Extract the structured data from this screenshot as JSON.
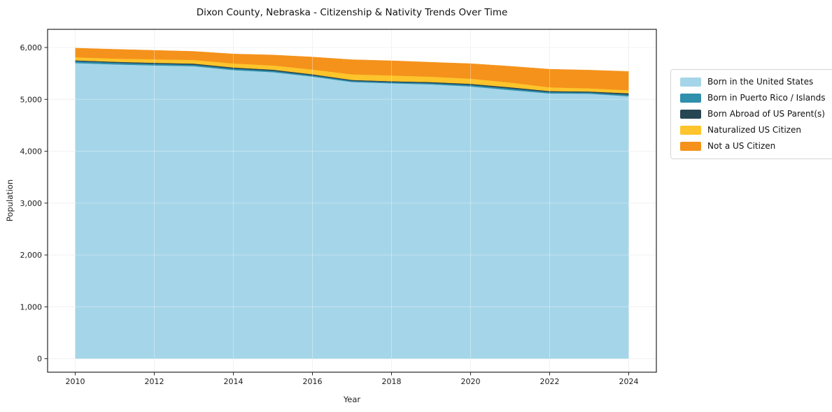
{
  "chart_data": {
    "type": "area",
    "stacked": true,
    "title": "Dixon County, Nebraska - Citizenship & Nativity Trends Over Time",
    "xlabel": "Year",
    "ylabel": "Population",
    "x": [
      2010,
      2011,
      2012,
      2013,
      2014,
      2015,
      2016,
      2017,
      2018,
      2019,
      2020,
      2021,
      2022,
      2023,
      2024
    ],
    "series": [
      {
        "name": "Born in the United States",
        "color": "#a5d5e8",
        "values": [
          5700,
          5675,
          5655,
          5640,
          5565,
          5525,
          5440,
          5335,
          5310,
          5290,
          5250,
          5180,
          5115,
          5110,
          5060
        ]
      },
      {
        "name": "Born in Puerto Rico / Islands",
        "color": "#2f8fad",
        "values": [
          35,
          32,
          30,
          28,
          28,
          26,
          24,
          22,
          22,
          24,
          28,
          30,
          26,
          24,
          30
        ]
      },
      {
        "name": "Born Abroad of US Parent(s)",
        "color": "#264653",
        "values": [
          18,
          18,
          20,
          22,
          22,
          22,
          20,
          18,
          18,
          20,
          22,
          24,
          20,
          18,
          28
        ]
      },
      {
        "name": "Naturalized US Citizen",
        "color": "#fdc42c",
        "values": [
          60,
          62,
          68,
          70,
          78,
          82,
          92,
          108,
          112,
          104,
          100,
          92,
          72,
          62,
          58
        ]
      },
      {
        "name": "Not a US Citizen",
        "color": "#f5921b",
        "values": [
          175,
          178,
          172,
          165,
          182,
          200,
          240,
          282,
          282,
          277,
          288,
          312,
          348,
          350,
          362
        ]
      }
    ],
    "xticks": [
      2010,
      2012,
      2014,
      2016,
      2018,
      2020,
      2022,
      2024
    ],
    "yticks": [
      0,
      1000,
      2000,
      3000,
      4000,
      5000,
      6000
    ],
    "xlim": [
      2009.3,
      2024.7
    ],
    "ylim": [
      -260,
      6350
    ],
    "grid": true,
    "legend_position": "right"
  }
}
